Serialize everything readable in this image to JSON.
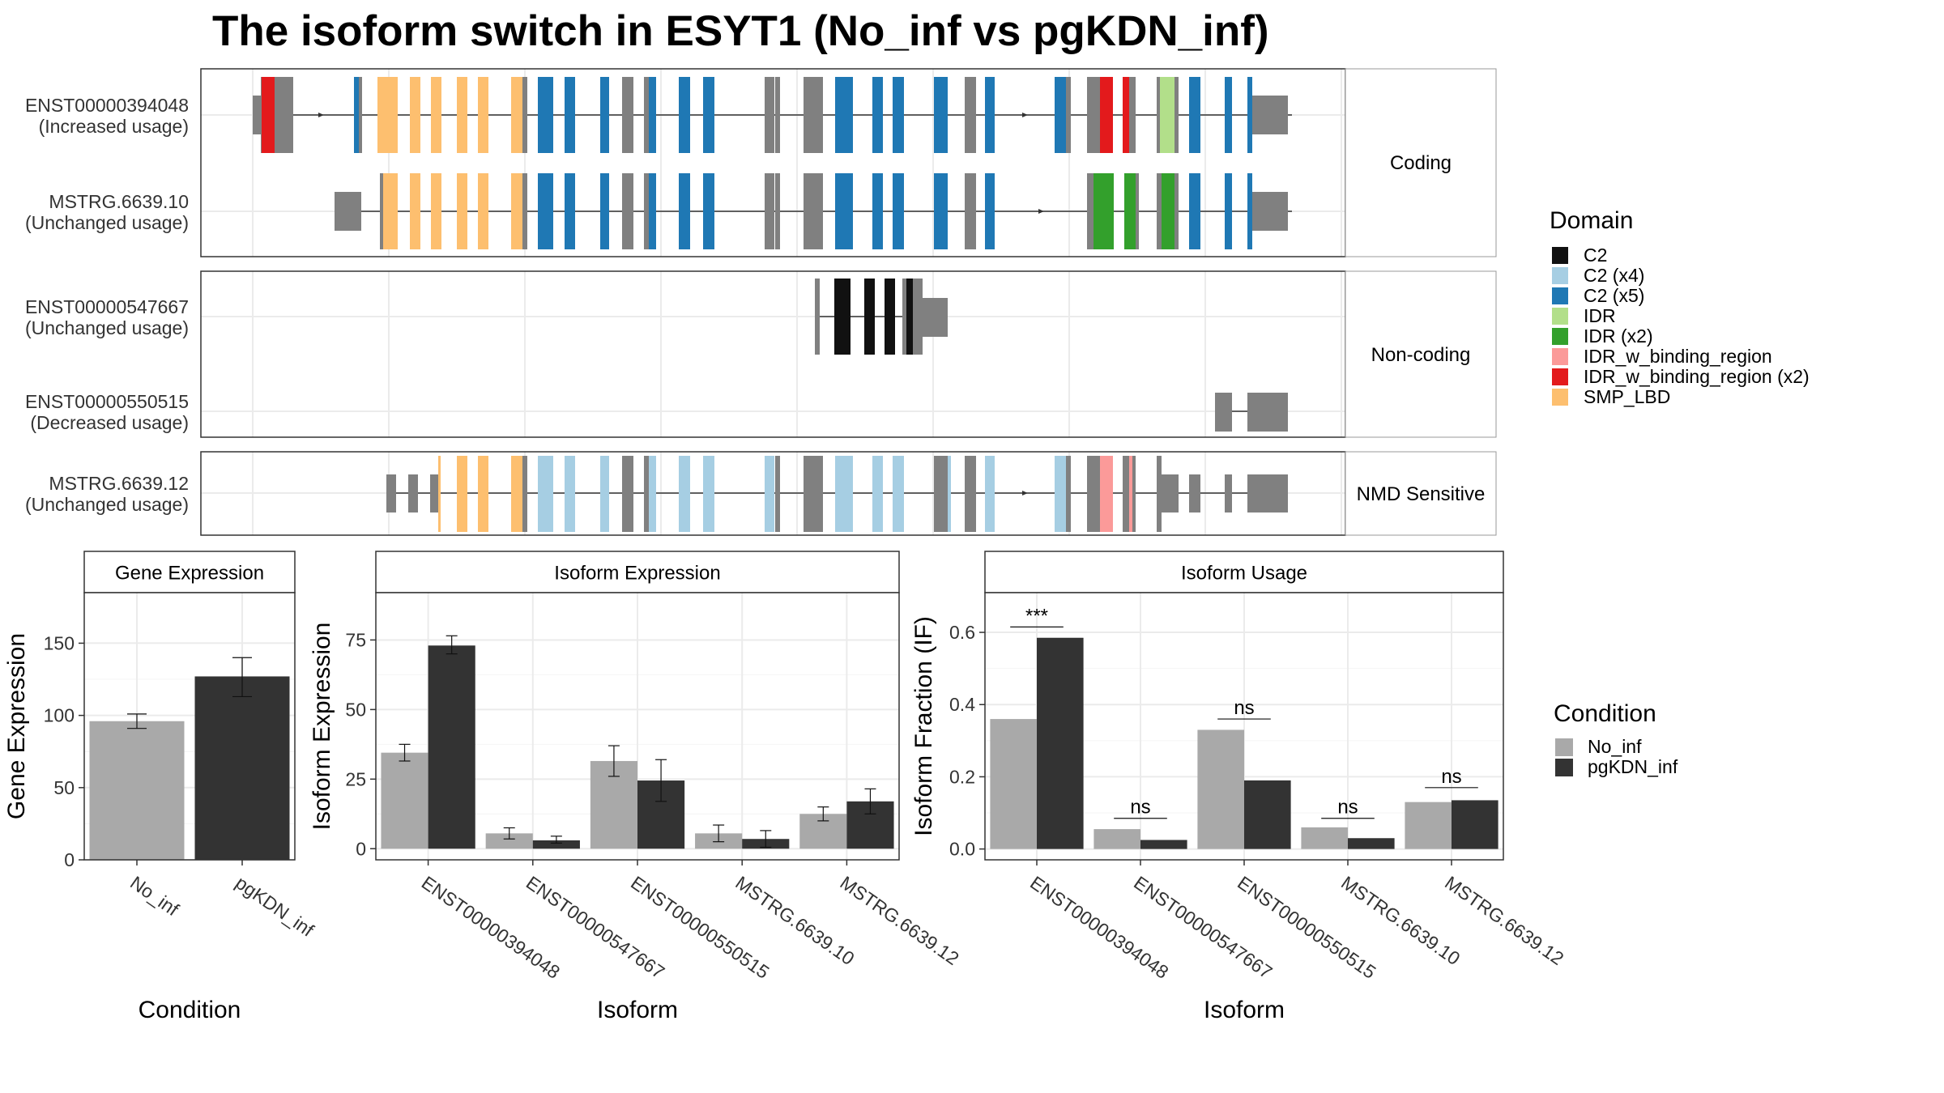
{
  "title": "The isoform switch in ESYT1 (No_inf vs pgKDN_inf)",
  "legend_domain": {
    "title": "Domain",
    "items": [
      {
        "label": "C2",
        "color": "#111111"
      },
      {
        "label": "C2 (x4)",
        "color": "#A6CEE3"
      },
      {
        "label": "C2 (x5)",
        "color": "#1F78B4"
      },
      {
        "label": "IDR",
        "color": "#B2DF8A"
      },
      {
        "label": "IDR (x2)",
        "color": "#33A02C"
      },
      {
        "label": "IDR_w_binding_region",
        "color": "#FB9A99"
      },
      {
        "label": "IDR_w_binding_region (x2)",
        "color": "#E31A1C"
      },
      {
        "label": "SMP_LBD",
        "color": "#FDBF6F"
      }
    ]
  },
  "legend_condition": {
    "title": "Condition",
    "items": [
      {
        "label": "No_inf",
        "color": "#A9A9A9"
      },
      {
        "label": "pgKDN_inf",
        "color": "#333333"
      }
    ]
  },
  "transcript_panels": [
    {
      "strip": "Coding",
      "rows": [
        {
          "name": "ENST00000394048",
          "usage": "(Increased usage)"
        },
        {
          "name": "MSTRG.6639.10",
          "usage": "(Unchanged usage)"
        }
      ]
    },
    {
      "strip": "Non-coding",
      "rows": [
        {
          "name": "ENST00000547667",
          "usage": "(Unchanged usage)"
        },
        {
          "name": "ENST00000550515",
          "usage": "(Decreased usage)"
        }
      ]
    },
    {
      "strip": "NMD Sensitive",
      "rows": [
        {
          "name": "MSTRG.6639.12",
          "usage": "(Unchanged usage)"
        }
      ]
    }
  ],
  "chart_data": [
    {
      "type": "bar",
      "title": "Gene Expression",
      "xlabel": "Condition",
      "ylabel": "Gene Expression",
      "ylim": [
        0,
        185
      ],
      "yticks": [
        0,
        50,
        100,
        150
      ],
      "categories": [
        "No_inf",
        "pgKDN_inf"
      ],
      "values": [
        96,
        127
      ],
      "error": [
        [
          91,
          101
        ],
        [
          113,
          140
        ]
      ],
      "colors": [
        "#A9A9A9",
        "#333333"
      ]
    },
    {
      "type": "bar",
      "title": "Isoform Expression",
      "xlabel": "Isoform",
      "ylabel": "Isoform Expression",
      "ylim": [
        -4,
        92
      ],
      "yticks": [
        0,
        25,
        50,
        75
      ],
      "categories": [
        "ENST00000394048",
        "ENST00000547667",
        "ENST00000550515",
        "MSTRG.6639.10",
        "MSTRG.6639.12"
      ],
      "series": [
        {
          "name": "No_inf",
          "values": [
            34.5,
            5.5,
            31.5,
            5.5,
            12.5
          ],
          "error": [
            [
              31.5,
              37.5
            ],
            [
              3.5,
              7.5
            ],
            [
              26,
              37
            ],
            [
              2.5,
              8.5
            ],
            [
              10,
              15
            ]
          ]
        },
        {
          "name": "pgKDN_inf",
          "values": [
            73,
            3,
            24.5,
            3.5,
            17
          ],
          "error": [
            [
              70,
              76.5
            ],
            [
              2,
              4.5
            ],
            [
              17,
              32
            ],
            [
              0.5,
              6.5
            ],
            [
              12.5,
              21.5
            ]
          ]
        }
      ]
    },
    {
      "type": "bar",
      "title": "Isoform Usage",
      "xlabel": "Isoform",
      "ylabel": "Isoform Fraction (IF)",
      "ylim": [
        -0.03,
        0.71
      ],
      "yticks": [
        0.0,
        0.2,
        0.4,
        0.6
      ],
      "ytick_labels": [
        "0.0",
        "0.2",
        "0.4",
        "0.6"
      ],
      "categories": [
        "ENST00000394048",
        "ENST00000547667",
        "ENST00000550515",
        "MSTRG.6639.10",
        "MSTRG.6639.12"
      ],
      "series": [
        {
          "name": "No_inf",
          "values": [
            0.36,
            0.055,
            0.33,
            0.06,
            0.13
          ]
        },
        {
          "name": "pgKDN_inf",
          "values": [
            0.585,
            0.025,
            0.19,
            0.03,
            0.135
          ]
        }
      ],
      "significance": [
        {
          "label": "***",
          "y": 0.615
        },
        {
          "label": "ns",
          "y": 0.085
        },
        {
          "label": "ns",
          "y": 0.36
        },
        {
          "label": "ns",
          "y": 0.085
        },
        {
          "label": "ns",
          "y": 0.17
        }
      ]
    }
  ]
}
